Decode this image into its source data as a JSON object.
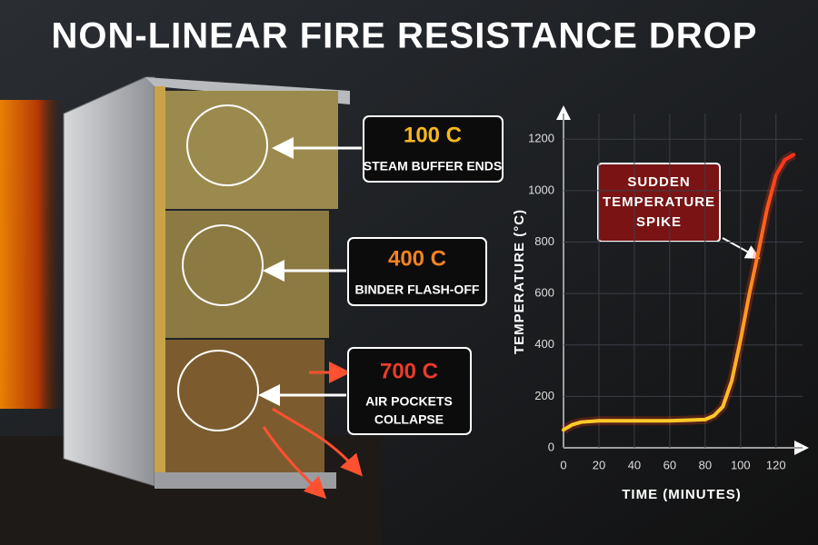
{
  "title": "NON-LINEAR FIRE RESISTANCE DROP",
  "callouts": [
    {
      "value": "100 C",
      "color": "#f6b81e",
      "lines": [
        "STEAM BUFFER ENDS"
      ]
    },
    {
      "value": "400 C",
      "color": "#f5821f",
      "lines": [
        "BINDER FLASH-OFF"
      ]
    },
    {
      "value": "700 C",
      "color": "#ec3a2c",
      "lines": [
        "AIR POCKETS",
        "COLLAPSE"
      ]
    }
  ],
  "chart_data": {
    "type": "line",
    "x_label": "TIME (MINUTES)",
    "y_label": "TEMPERATURE (°C)",
    "annotation": [
      "SUDDEN",
      "TEMPERATURE",
      "SPIKE"
    ],
    "x": [
      0,
      5,
      10,
      20,
      40,
      60,
      80,
      85,
      90,
      95,
      100,
      105,
      110,
      115,
      120,
      125,
      130
    ],
    "values": [
      70,
      90,
      100,
      105,
      105,
      105,
      110,
      125,
      160,
      260,
      420,
      600,
      760,
      930,
      1060,
      1120,
      1140
    ],
    "xlim": [
      0,
      135
    ],
    "ylim": [
      0,
      1300
    ],
    "xticks": [
      0,
      20,
      40,
      60,
      80,
      100,
      120
    ],
    "yticks": [
      0,
      200,
      400,
      600,
      800,
      1000,
      1200
    ],
    "grid": true
  }
}
